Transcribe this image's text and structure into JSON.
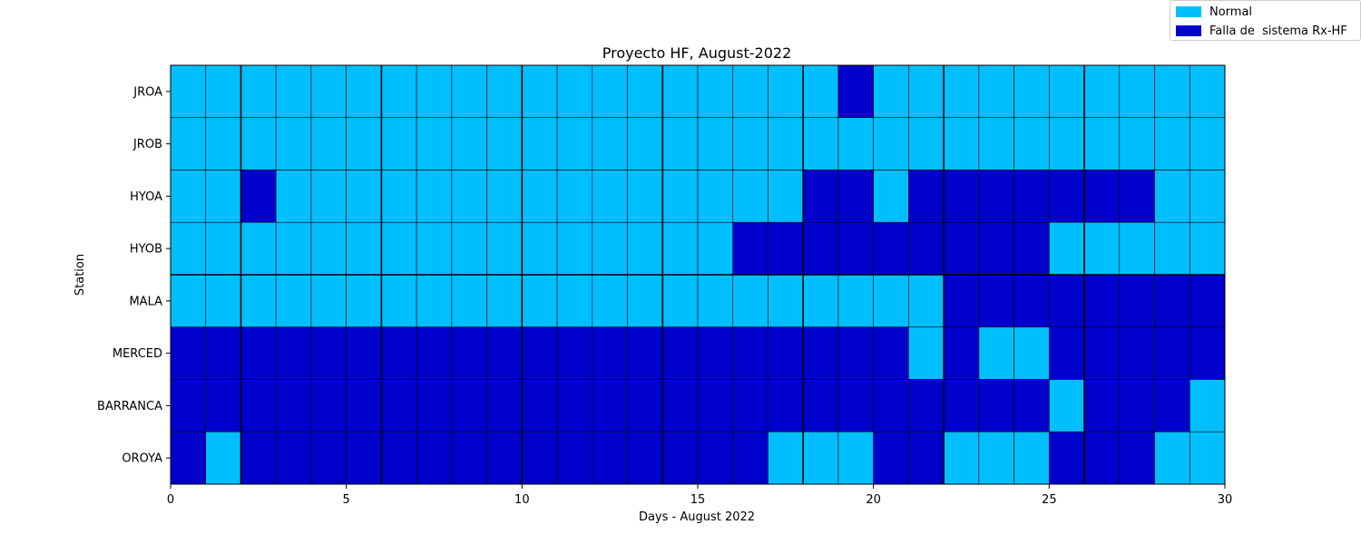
{
  "chart_data": {
    "type": "heatmap",
    "title": "Proyecto HF, August-2022",
    "xlabel": "Days - August 2022",
    "ylabel": "Station",
    "xlim": [
      0,
      30
    ],
    "xticks": [
      0,
      5,
      10,
      15,
      20,
      25,
      30
    ],
    "stations": [
      "JROA",
      "JROB",
      "HYOA",
      "HYOB",
      "MALA",
      "MERCED",
      "BARRANCA",
      "OROYA"
    ],
    "days": [
      1,
      2,
      3,
      4,
      5,
      6,
      7,
      8,
      9,
      10,
      11,
      12,
      13,
      14,
      15,
      16,
      17,
      18,
      19,
      20,
      21,
      22,
      23,
      24,
      25,
      26,
      27,
      28,
      29,
      30
    ],
    "status_codes": {
      "0": "Normal",
      "1": "Falla de  sistema Rx-HF"
    },
    "status": [
      [
        0,
        0,
        0,
        0,
        0,
        0,
        0,
        0,
        0,
        0,
        0,
        0,
        0,
        0,
        0,
        0,
        0,
        0,
        0,
        1,
        0,
        0,
        0,
        0,
        0,
        0,
        0,
        0,
        0,
        0
      ],
      [
        0,
        0,
        0,
        0,
        0,
        0,
        0,
        0,
        0,
        0,
        0,
        0,
        0,
        0,
        0,
        0,
        0,
        0,
        0,
        0,
        0,
        0,
        0,
        0,
        0,
        0,
        0,
        0,
        0,
        0
      ],
      [
        0,
        0,
        1,
        0,
        0,
        0,
        0,
        0,
        0,
        0,
        0,
        0,
        0,
        0,
        0,
        0,
        0,
        0,
        1,
        1,
        0,
        1,
        1,
        1,
        1,
        1,
        1,
        1,
        0,
        0
      ],
      [
        0,
        0,
        0,
        0,
        0,
        0,
        0,
        0,
        0,
        0,
        0,
        0,
        0,
        0,
        0,
        0,
        1,
        1,
        1,
        1,
        1,
        1,
        1,
        1,
        1,
        0,
        0,
        0,
        0,
        0
      ],
      [
        0,
        0,
        0,
        0,
        0,
        0,
        0,
        0,
        0,
        0,
        0,
        0,
        0,
        0,
        0,
        0,
        0,
        0,
        0,
        0,
        0,
        0,
        1,
        1,
        1,
        1,
        1,
        1,
        1,
        1
      ],
      [
        1,
        1,
        1,
        1,
        1,
        1,
        1,
        1,
        1,
        1,
        1,
        1,
        1,
        1,
        1,
        1,
        1,
        1,
        1,
        1,
        1,
        0,
        1,
        0,
        0,
        1,
        1,
        1,
        1,
        1
      ],
      [
        1,
        1,
        1,
        1,
        1,
        1,
        1,
        1,
        1,
        1,
        1,
        1,
        1,
        1,
        1,
        1,
        1,
        1,
        1,
        1,
        1,
        1,
        1,
        1,
        1,
        0,
        1,
        1,
        1,
        0
      ],
      [
        1,
        0,
        1,
        1,
        1,
        1,
        1,
        1,
        1,
        1,
        1,
        1,
        1,
        1,
        1,
        1,
        1,
        0,
        0,
        0,
        1,
        1,
        0,
        0,
        0,
        1,
        1,
        1,
        0,
        0
      ]
    ],
    "legend": [
      {
        "label": "Normal",
        "color": "#00bfff"
      },
      {
        "label": "Falla de  sistema Rx-HF",
        "color": "#0000cd"
      }
    ],
    "legend_position": "top-right",
    "grid": false
  }
}
